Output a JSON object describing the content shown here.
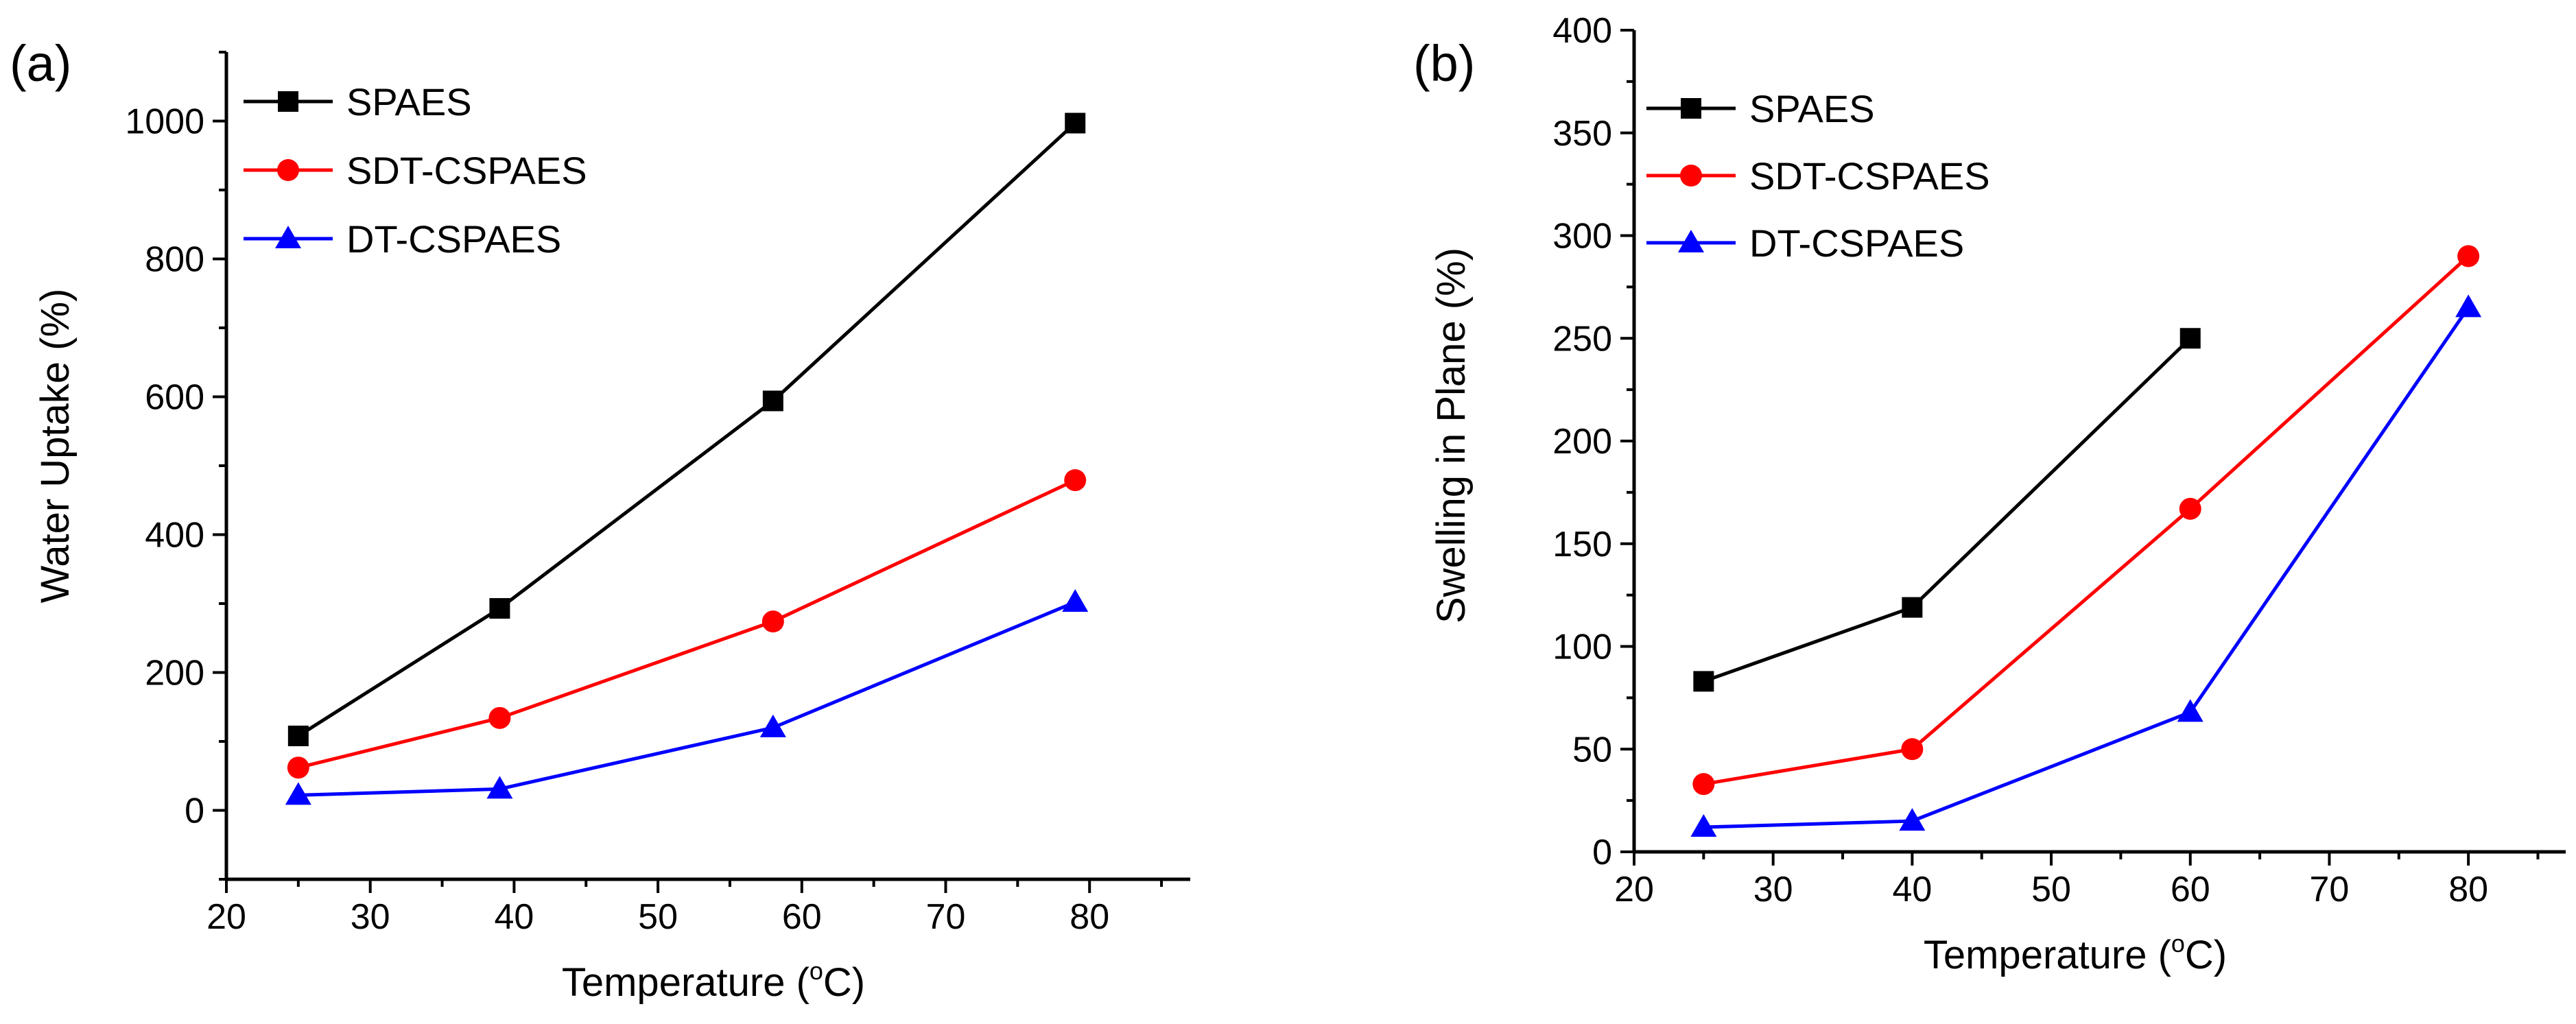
{
  "chart_data": [
    {
      "type": "line",
      "panel_label": "(a)",
      "xlabel_main": "Temperature (",
      "xlabel_sup": "o",
      "xlabel_end": "C)",
      "ylabel": "Water Uptake (%)",
      "xlim": [
        20,
        87
      ],
      "ylim": [
        -100,
        1100
      ],
      "xticks": [
        20,
        30,
        40,
        50,
        60,
        70,
        80
      ],
      "yticks": [
        0,
        200,
        400,
        600,
        800,
        1000
      ],
      "legend_position": "top-left",
      "series": [
        {
          "name": "SPAES",
          "color": "#000000",
          "marker": "square",
          "x": [
            25,
            39,
            58,
            79
          ],
          "y": [
            108,
            293,
            594,
            997
          ]
        },
        {
          "name": "SDT-CSPAES",
          "color": "#ff0000",
          "marker": "circle",
          "x": [
            25,
            39,
            58,
            79
          ],
          "y": [
            62,
            134,
            274,
            479
          ]
        },
        {
          "name": "DT-CSPAES",
          "color": "#0000ff",
          "marker": "triangle",
          "x": [
            25,
            39,
            58,
            79
          ],
          "y": [
            22,
            31,
            120,
            302
          ]
        }
      ]
    },
    {
      "type": "line",
      "panel_label": "(b)",
      "xlabel_main": "Temperature (",
      "xlabel_sup": "o",
      "xlabel_end": "C)",
      "ylabel": "Swelling in Plane (%)",
      "xlim": [
        20,
        87
      ],
      "ylim": [
        0,
        400
      ],
      "xticks": [
        20,
        30,
        40,
        50,
        60,
        70,
        80
      ],
      "yticks": [
        0,
        50,
        100,
        150,
        200,
        250,
        300,
        350,
        400
      ],
      "legend_position": "top-left",
      "series": [
        {
          "name": "SPAES",
          "color": "#000000",
          "marker": "square",
          "x": [
            25,
            40,
            60
          ],
          "y": [
            83,
            119,
            250
          ]
        },
        {
          "name": "SDT-CSPAES",
          "color": "#ff0000",
          "marker": "circle",
          "x": [
            25,
            40,
            60,
            80
          ],
          "y": [
            33,
            50,
            167,
            290
          ]
        },
        {
          "name": "DT-CSPAES",
          "color": "#0000ff",
          "marker": "triangle",
          "x": [
            25,
            40,
            60,
            80
          ],
          "y": [
            12,
            15,
            68,
            265
          ]
        }
      ]
    }
  ]
}
